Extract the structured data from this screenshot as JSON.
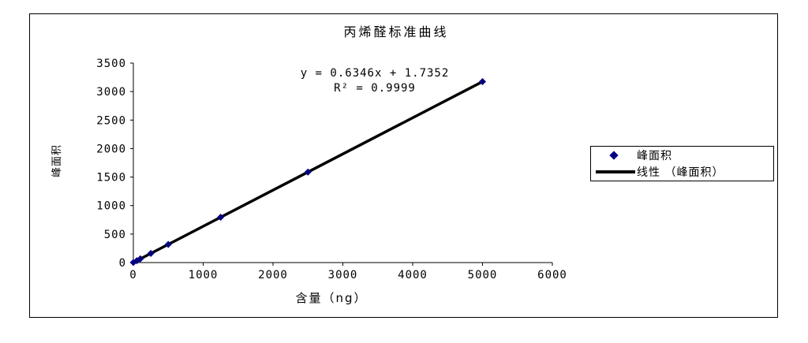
{
  "window": {
    "background": "#ffffff",
    "frame_border": "#000000"
  },
  "chart_data": {
    "type": "scatter",
    "title": "丙烯醛标准曲线",
    "xlabel": "含量（ng）",
    "ylabel": "峰面积",
    "annotation": {
      "equation_line1": "y = 0.6346x + 1.7352",
      "equation_line2": "R² = 0.9999"
    },
    "xlim": [
      0,
      6000
    ],
    "ylim": [
      0,
      3500
    ],
    "xticks": [
      0,
      1000,
      2000,
      3000,
      4000,
      5000,
      6000
    ],
    "yticks": [
      0,
      500,
      1000,
      1500,
      2000,
      2500,
      3000,
      3500
    ],
    "grid": false,
    "legend_position": "right",
    "series": [
      {
        "name": "峰面积",
        "type": "scatter",
        "marker": "diamond",
        "color": "#000080",
        "points": [
          [
            0,
            2
          ],
          [
            50,
            33
          ],
          [
            100,
            65
          ],
          [
            250,
            160
          ],
          [
            500,
            319
          ],
          [
            1250,
            795
          ],
          [
            2500,
            1588
          ],
          [
            5000,
            3175
          ]
        ]
      },
      {
        "name": "线性 （峰面积）",
        "type": "trendline",
        "color": "#000000",
        "slope": 0.6346,
        "intercept": 1.7352,
        "x_range": [
          0,
          5000
        ]
      }
    ],
    "legend": [
      {
        "label": "峰面积",
        "marker": "diamond",
        "color": "#000080"
      },
      {
        "label": "线性 （峰面积）",
        "marker": "line",
        "color": "#000000"
      }
    ]
  }
}
